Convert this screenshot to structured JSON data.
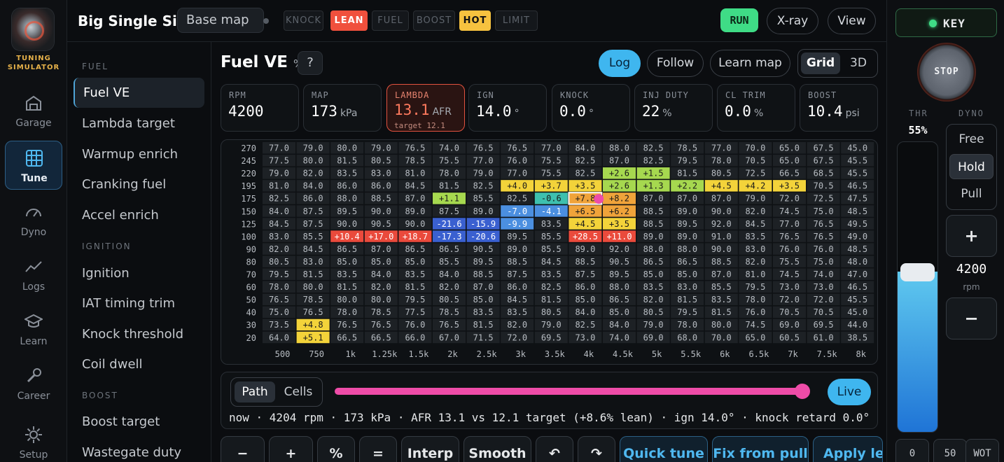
{
  "brand": {
    "line1": "TUNING",
    "line2": "SIMULATOR"
  },
  "rail": [
    {
      "label": "Garage",
      "icon": "garage-icon"
    },
    {
      "label": "Tune",
      "icon": "grid-icon",
      "active": true
    },
    {
      "label": "Dyno",
      "icon": "gauge-icon"
    },
    {
      "label": "Logs",
      "icon": "chart-line-icon"
    },
    {
      "label": "Learn",
      "icon": "graduation-cap-icon"
    },
    {
      "label": "Career",
      "icon": "wrench-icon"
    },
    {
      "label": "Setup",
      "icon": "gear-icon"
    }
  ],
  "header": {
    "title": "Big Single Six",
    "map_name": "Base map",
    "run": "RUN",
    "xray": "X-ray",
    "view": "View"
  },
  "status_flags": [
    {
      "label": "KNOCK",
      "state": "off"
    },
    {
      "label": "LEAN",
      "state": "lean"
    },
    {
      "label": "FUEL",
      "state": "off"
    },
    {
      "label": "BOOST",
      "state": "off"
    },
    {
      "label": "HOT",
      "state": "hot"
    },
    {
      "label": "LIMIT",
      "state": "off"
    }
  ],
  "sidebar": {
    "sections": [
      {
        "title": "FUEL",
        "items": [
          "Fuel VE",
          "Lambda target",
          "Warmup enrich",
          "Cranking fuel",
          "Accel enrich"
        ]
      },
      {
        "title": "IGNITION",
        "items": [
          "Ignition",
          "IAT timing trim",
          "Knock threshold",
          "Coil dwell"
        ]
      },
      {
        "title": "BOOST",
        "items": [
          "Boost target",
          "Wastegate duty"
        ]
      }
    ],
    "active": "Fuel VE"
  },
  "main": {
    "title": "Fuel VE",
    "unit": "%",
    "help": "?",
    "toolbar": {
      "log": "Log",
      "follow": "Follow",
      "learn": "Learn map",
      "grid": "Grid",
      "threed": "3D"
    }
  },
  "readouts": [
    {
      "label": "RPM",
      "value": "4200",
      "unit": ""
    },
    {
      "label": "MAP",
      "value": "173",
      "unit": "kPa"
    },
    {
      "label": "LAMBDA",
      "value": "13.1",
      "unit": "AFR",
      "sub": "target 12.1",
      "warn": true
    },
    {
      "label": "IGN",
      "value": "14.0",
      "unit": "°"
    },
    {
      "label": "KNOCK",
      "value": "0.0",
      "unit": "°"
    },
    {
      "label": "INJ DUTY",
      "value": "22",
      "unit": "%"
    },
    {
      "label": "CL TRIM",
      "value": "0.0",
      "unit": "%"
    },
    {
      "label": "BOOST",
      "value": "10.4",
      "unit": "psi"
    }
  ],
  "table": {
    "rows": [
      "270",
      "245",
      "220",
      "195",
      "175",
      "150",
      "125",
      "100",
      "90",
      "80",
      "70",
      "60",
      "50",
      "40",
      "30",
      "20"
    ],
    "cols": [
      "500",
      "750",
      "1k",
      "1.25k",
      "1.5k",
      "2k",
      "2.5k",
      "3k",
      "3.5k",
      "4k",
      "4.5k",
      "5k",
      "5.5k",
      "6k",
      "6.5k",
      "7k",
      "7.5k",
      "8k"
    ],
    "cells": [
      [
        "77.0",
        "79.0",
        "80.0",
        "79.0",
        "76.5",
        "74.0",
        "76.5",
        "76.5",
        "77.0",
        "84.0",
        "88.0",
        "82.5",
        "78.5",
        "77.0",
        "70.0",
        "65.0",
        "67.5",
        "45.0"
      ],
      [
        "77.5",
        "80.0",
        "81.5",
        "80.5",
        "78.5",
        "75.5",
        "77.0",
        "76.0",
        "75.5",
        "82.5",
        "87.0",
        "82.5",
        "79.5",
        "78.0",
        "70.5",
        "65.0",
        "67.5",
        "45.5"
      ],
      [
        "79.0",
        "82.0",
        "83.5",
        "83.0",
        "81.0",
        "78.0",
        "79.0",
        "77.0",
        "75.5",
        "82.5",
        "+2.6",
        "+1.5",
        "81.5",
        "80.5",
        "72.5",
        "66.5",
        "68.5",
        "45.5"
      ],
      [
        "81.0",
        "84.0",
        "86.0",
        "86.0",
        "84.5",
        "81.5",
        "82.5",
        "+4.0",
        "+3.7",
        "+3.5",
        "+2.6",
        "+1.3",
        "+2.2",
        "+4.5",
        "+4.2",
        "+3.5",
        "70.5",
        "46.5"
      ],
      [
        "82.5",
        "86.0",
        "88.0",
        "88.5",
        "87.0",
        "+1.1",
        "85.5",
        "82.5",
        "-0.6",
        "+7.8",
        "+8.2",
        "87.0",
        "87.0",
        "87.0",
        "79.0",
        "72.0",
        "72.5",
        "47.5"
      ],
      [
        "84.0",
        "87.5",
        "89.5",
        "90.0",
        "89.0",
        "87.5",
        "89.0",
        "-7.0",
        "-4.1",
        "+6.5",
        "+6.2",
        "88.5",
        "89.0",
        "90.0",
        "82.0",
        "74.5",
        "75.0",
        "48.5"
      ],
      [
        "84.5",
        "87.5",
        "90.0",
        "90.5",
        "90.0",
        "-21.6",
        "-15.9",
        "-9.9",
        "83.5",
        "+4.5",
        "+3.5",
        "88.5",
        "89.5",
        "92.0",
        "84.5",
        "77.0",
        "76.5",
        "49.5"
      ],
      [
        "83.0",
        "85.5",
        "+10.4",
        "+17.0",
        "+18.7",
        "-17.3",
        "-20.6",
        "89.5",
        "85.5",
        "+28.5",
        "+11.0",
        "89.0",
        "89.0",
        "91.0",
        "83.5",
        "76.5",
        "76.5",
        "49.0"
      ],
      [
        "82.0",
        "84.5",
        "86.5",
        "87.0",
        "86.5",
        "86.5",
        "90.5",
        "89.0",
        "85.5",
        "89.0",
        "92.0",
        "88.0",
        "88.0",
        "90.0",
        "83.0",
        "76.0",
        "76.0",
        "48.5"
      ],
      [
        "80.5",
        "83.0",
        "85.0",
        "85.0",
        "85.0",
        "85.5",
        "89.5",
        "88.5",
        "84.5",
        "88.5",
        "90.5",
        "86.5",
        "86.5",
        "88.5",
        "82.0",
        "75.5",
        "75.0",
        "48.0"
      ],
      [
        "79.5",
        "81.5",
        "83.5",
        "84.0",
        "83.5",
        "84.0",
        "88.5",
        "87.5",
        "83.5",
        "87.5",
        "89.5",
        "85.0",
        "85.0",
        "87.0",
        "81.0",
        "74.5",
        "74.0",
        "47.0"
      ],
      [
        "78.0",
        "80.0",
        "81.5",
        "82.0",
        "81.5",
        "82.0",
        "87.0",
        "86.0",
        "82.5",
        "86.0",
        "88.0",
        "83.5",
        "83.0",
        "85.5",
        "79.5",
        "73.0",
        "73.0",
        "46.5"
      ],
      [
        "76.5",
        "78.5",
        "80.0",
        "80.0",
        "79.5",
        "80.5",
        "85.0",
        "84.5",
        "81.5",
        "85.0",
        "86.5",
        "82.0",
        "81.5",
        "83.5",
        "78.0",
        "72.0",
        "72.0",
        "45.5"
      ],
      [
        "75.0",
        "76.5",
        "78.0",
        "78.5",
        "77.5",
        "78.5",
        "83.5",
        "83.5",
        "80.5",
        "84.0",
        "85.0",
        "80.5",
        "79.5",
        "81.5",
        "76.0",
        "70.5",
        "70.5",
        "45.0"
      ],
      [
        "73.5",
        "+4.8",
        "76.5",
        "76.5",
        "76.0",
        "76.5",
        "81.5",
        "82.0",
        "79.0",
        "82.5",
        "84.0",
        "79.0",
        "78.0",
        "80.0",
        "74.5",
        "69.0",
        "69.5",
        "44.0"
      ],
      [
        "64.0",
        "+5.1",
        "66.5",
        "66.5",
        "66.0",
        "67.0",
        "71.5",
        "72.0",
        "69.5",
        "73.0",
        "74.0",
        "69.0",
        "68.0",
        "70.0",
        "65.0",
        "60.5",
        "61.0",
        "38.5"
      ]
    ],
    "selected": {
      "row": 4,
      "col": 9
    },
    "colors": {
      "pos_low": "#a6d84f",
      "pos_mid": "#f3d33a",
      "pos_high": "#f0a33a",
      "pos_max": "#ea4a3c",
      "neg_low": "#3ec0ae",
      "neg_mid": "#4b8fe0",
      "neg_max": "#3a60d0"
    }
  },
  "log_controls": {
    "path": "Path",
    "cells": "Cells",
    "live": "Live",
    "playback": 0.985,
    "status": "now · 4204 rpm · 173 kPa · AFR 13.1 vs 12.1 target (+8.6% lean) · ign 14.0° · knock retard 0.0° ·"
  },
  "actions": [
    "−",
    "+",
    "%",
    "=",
    "Interp",
    "Smooth",
    "↶",
    "↷",
    "Quick tune",
    "Fix from pull",
    "Apply lean"
  ],
  "right": {
    "key": "KEY",
    "stop": "STOP",
    "thr_label": "THR",
    "thr_value": "55%",
    "thr_fraction": 0.55,
    "dyno_label": "DYNO",
    "dyno_modes": [
      "Free",
      "Hold",
      "Pull"
    ],
    "dyno_active": "Hold",
    "plus": "+",
    "minus": "−",
    "rpm": "4200",
    "rpm_unit": "rpm",
    "throttle_presets": [
      "0",
      "50",
      "WOT"
    ]
  }
}
